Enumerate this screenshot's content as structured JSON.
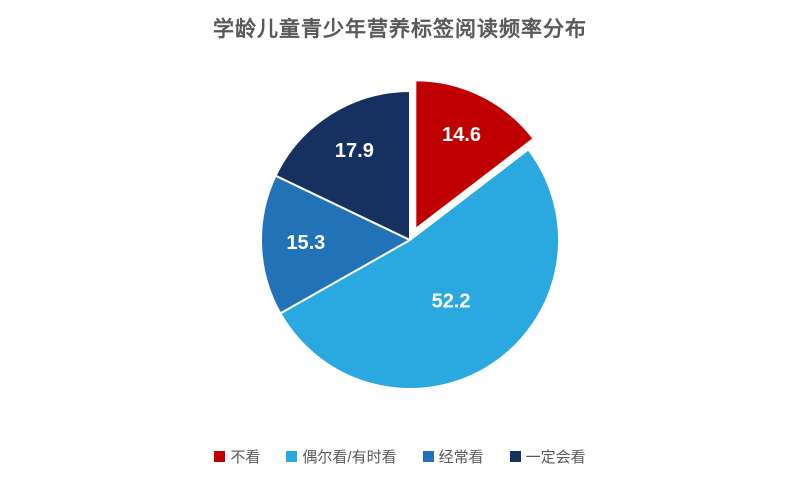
{
  "chart_data": {
    "type": "pie",
    "title": "学龄儿童青少年营养标签阅读频率分布",
    "slices": [
      {
        "label": "不看",
        "value": 14.6,
        "color": "#c00000",
        "exploded": true
      },
      {
        "label": "偶尔看/有时看",
        "value": 52.2,
        "color": "#29a9e0",
        "exploded": false
      },
      {
        "label": "经常看",
        "value": 15.3,
        "color": "#2272b8",
        "exploded": false
      },
      {
        "label": "一定会看",
        "value": 17.9,
        "color": "#16305f",
        "exploded": false
      }
    ],
    "start_angle_deg": 0,
    "direction": "clockwise",
    "data_labels": "values shown inside slices, white bold",
    "legend_position": "bottom",
    "title_color": "#595959",
    "legend_text_color": "#595959",
    "background_color": "#ffffff"
  }
}
